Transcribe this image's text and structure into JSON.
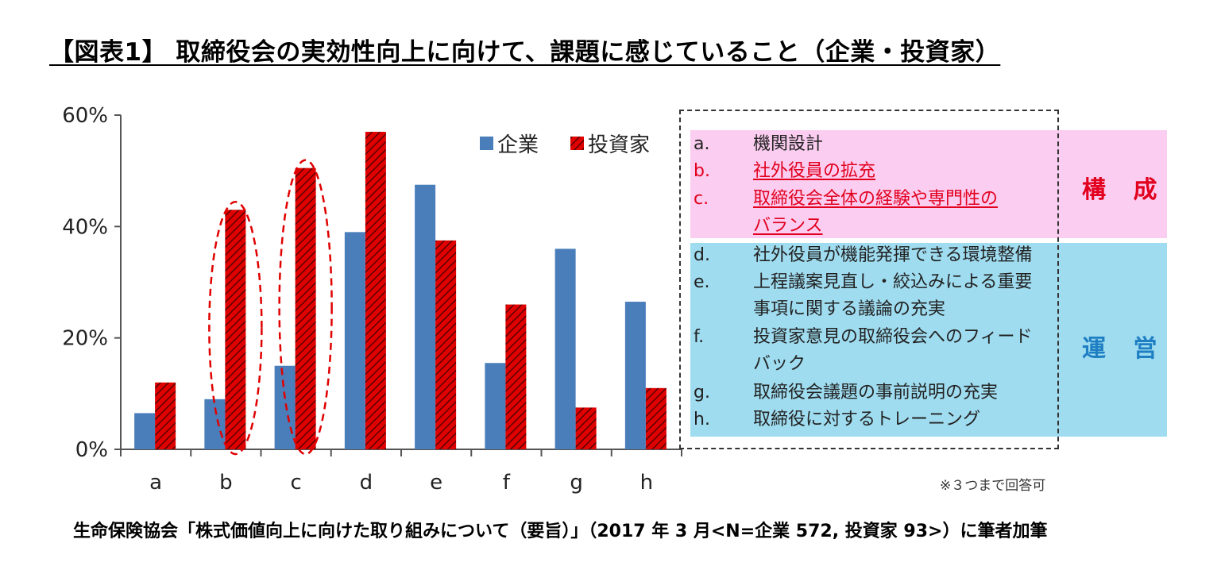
{
  "title": "【図表1】 取締役会の実効性向上に向けて、課題に感じていること（企業・投資家）",
  "colors": {
    "kigyo": "#4a7ebb",
    "toshika": "#e00000",
    "hatch": "#5a0000",
    "kosei_band": "#fbcdf0",
    "unei_band": "#9fdcf0",
    "kosei_label": "#e2001e",
    "unei_label": "#1f7fc3"
  },
  "chart_data": {
    "type": "bar",
    "categories": [
      "a",
      "b",
      "c",
      "d",
      "e",
      "f",
      "g",
      "h"
    ],
    "series": [
      {
        "name": "企業",
        "values": [
          6.5,
          9,
          15,
          39,
          47.5,
          15.5,
          36,
          26.5
        ]
      },
      {
        "name": "投資家",
        "values": [
          12,
          43,
          50.5,
          57,
          37.5,
          26,
          7.5,
          11
        ]
      }
    ],
    "ylim": [
      0,
      60
    ],
    "yticks": [
      "0%",
      "20%",
      "40%",
      "60%"
    ],
    "highlighted_categories": [
      "b",
      "c"
    ],
    "legend_position": "top-right"
  },
  "panel": {
    "groups": [
      {
        "label": "構 成",
        "items": [
          {
            "letter": "a.",
            "text": "機関設計",
            "highlight": false
          },
          {
            "letter": "b.",
            "text": "社外役員の拡充",
            "highlight": true
          },
          {
            "letter": "c.",
            "text": "取締役会全体の経験や専門性の",
            "cont": "バランス",
            "highlight": true
          }
        ]
      },
      {
        "label": "運 営",
        "items": [
          {
            "letter": "d.",
            "text": "社外役員が機能発揮できる環境整備",
            "highlight": false
          },
          {
            "letter": "e.",
            "text": "上程議案見直し・絞込みによる重要",
            "cont": "事項に関する議論の充実",
            "highlight": false
          },
          {
            "letter": "f.",
            "text": "投資家意見の取締役会へのフィード",
            "cont": "バック",
            "highlight": false
          },
          {
            "letter": "g.",
            "text": "取締役会議題の事前説明の充実",
            "highlight": false
          },
          {
            "letter": "h.",
            "text": "取締役に対するトレーニング",
            "highlight": false
          }
        ]
      }
    ]
  },
  "note": "※３つまで回答可",
  "source": "生命保険協会「株式価値向上に向けた取り組みについて（要旨）」（2017 年 3 月<N=企業 572, 投資家 93>）に筆者加筆"
}
